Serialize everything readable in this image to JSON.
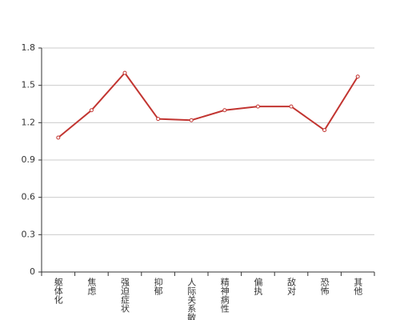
{
  "chart_data": {
    "type": "line",
    "categories": [
      "躯体化",
      "焦虑",
      "强迫症状",
      "抑郁",
      "人际关系敏感",
      "精神病性",
      "偏执",
      "敌对",
      "恐怖",
      "其他"
    ],
    "series": [
      {
        "color": "#c23531",
        "values": [
          1.08,
          1.3,
          1.6,
          1.23,
          1.22,
          1.3,
          1.33,
          1.33,
          1.14,
          1.57
        ]
      }
    ],
    "ylim": [
      0,
      1.8
    ],
    "yticks": [
      0,
      0.3,
      0.6,
      0.9,
      1.2,
      1.5,
      1.8
    ],
    "grid": true
  }
}
